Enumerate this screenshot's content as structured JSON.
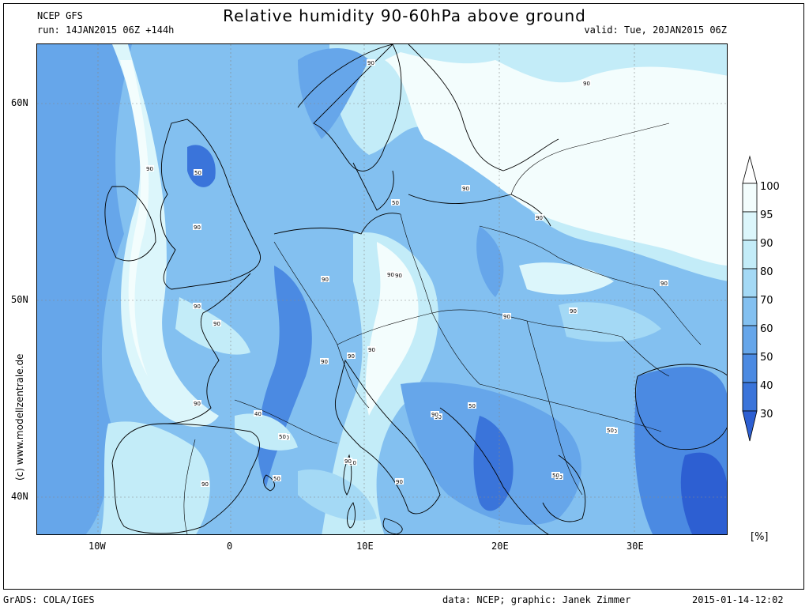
{
  "header": {
    "model": "NCEP GFS",
    "run": "run: 14JAN2015 06Z +144h",
    "valid": "valid: Tue, 20JAN2015 06Z",
    "title": "Relative humidity 90-60hPa above ground"
  },
  "map": {
    "lat_labels": [
      "60N",
      "50N",
      "40N"
    ],
    "lon_labels": [
      "10W",
      "0",
      "10E",
      "20E",
      "30E"
    ],
    "contour_labels": [
      "90",
      "90",
      "50",
      "90",
      "90",
      "50",
      "90",
      "90",
      "90",
      "90",
      "90",
      "90",
      "90",
      "90",
      "90",
      "90",
      "90",
      "40",
      "90",
      "50",
      "90",
      "50",
      "50",
      "90",
      "90",
      "90",
      "50",
      "90",
      "90",
      "90",
      "50",
      "50",
      "50",
      "90",
      "50"
    ],
    "watermark": "(c) www.modellzentrale.de"
  },
  "colorbar": {
    "levels": [
      "100",
      "95",
      "90",
      "80",
      "70",
      "60",
      "50",
      "40",
      "30"
    ],
    "colors": [
      "#f3fdfd",
      "#dcf6fb",
      "#c3ecf8",
      "#a4d9f5",
      "#83c0f0",
      "#66a6ea",
      "#4b8ae2",
      "#3a74da",
      "#2d5fd2"
    ],
    "unit": "[%]"
  },
  "footer": {
    "left": "GrADS: COLA/IGES",
    "center": "data: NCEP; graphic: Janek Zimmer",
    "right": "2015-01-14-12:02"
  }
}
